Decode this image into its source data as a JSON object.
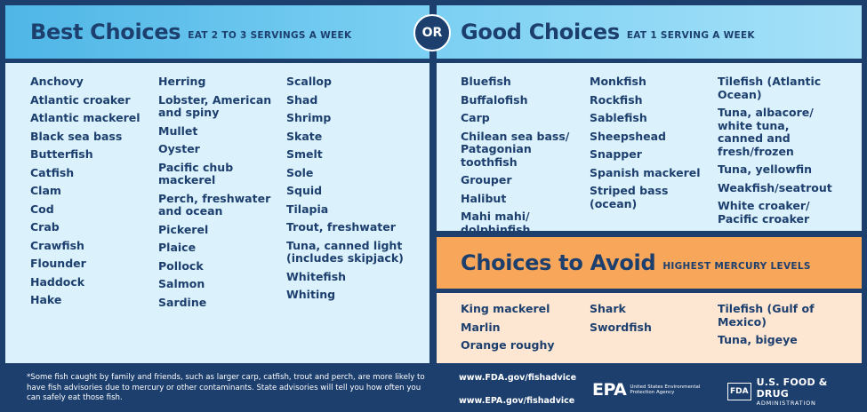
{
  "best": {
    "title": "Best Choices",
    "subtitle": "EAT 2 TO 3 SERVINGS A WEEK",
    "columns": [
      [
        "Anchovy",
        "Atlantic croaker",
        "Atlantic mackerel",
        "Black sea bass",
        "Butterfish",
        "Catfish",
        "Clam",
        "Cod",
        "Crab",
        "Crawfish",
        "Flounder",
        "Haddock",
        "Hake"
      ],
      [
        "Herring",
        "Lobster, American and spiny",
        "Mullet",
        "Oyster",
        "Pacific chub mackerel",
        "Perch, freshwater and ocean",
        "Pickerel",
        "Plaice",
        "Pollock",
        "Salmon",
        "Sardine"
      ],
      [
        "Scallop",
        "Shad",
        "Shrimp",
        "Skate",
        "Smelt",
        "Sole",
        "Squid",
        "Tilapia",
        "Trout, freshwater",
        "Tuna, canned light (includes skipjack)",
        "Whitefish",
        "Whiting"
      ]
    ]
  },
  "or_label": "OR",
  "good": {
    "title": "Good Choices",
    "subtitle": "EAT 1 SERVING A WEEK",
    "columns": [
      [
        "Bluefish",
        "Buffalofish",
        "Carp",
        "Chilean sea bass/ Patagonian toothfish",
        "Grouper",
        "Halibut",
        "Mahi mahi/ dolphinfish"
      ],
      [
        "Monkfish",
        "Rockfish",
        "Sablefish",
        "Sheepshead",
        "Snapper",
        "Spanish mackerel",
        "Striped bass (ocean)"
      ],
      [
        "Tilefish (Atlantic Ocean)",
        "Tuna, albacore/ white tuna, canned and fresh/frozen",
        "Tuna, yellowfin",
        "Weakfish/seatrout",
        "White croaker/ Pacific croaker"
      ]
    ]
  },
  "avoid": {
    "title": "Choices to Avoid",
    "subtitle": "HIGHEST MERCURY LEVELS",
    "columns": [
      [
        "King mackerel",
        "Marlin",
        "Orange roughy"
      ],
      [
        "Shark",
        "Swordfish"
      ],
      [
        "Tilefish (Gulf of Mexico)",
        "Tuna, bigeye"
      ]
    ]
  },
  "footer": {
    "footnote": "*Some fish caught by family and friends, such as larger carp, catfish, trout and perch, are more likely to have fish advisories due to mercury or other contaminants. State advisories will tell you how often you can safely eat those fish.",
    "fda_url": "www.FDA.gov/fishadvice",
    "epa_url": "www.EPA.gov/fishadvice",
    "epa_mark": "EPA",
    "epa_name": "United States Environmental Protection Agency",
    "fda_box": "FDA",
    "fda_name": "U.S. FOOD & DRUG",
    "fda_admin": "ADMINISTRATION"
  },
  "colors": {
    "navy": "#1d3f6e",
    "best_header": "#4fb6e6",
    "good_header": "#7cd0f3",
    "avoid_header": "#f8a75a",
    "list_bg": "#dbf1fc",
    "avoid_bg": "#fde7d3"
  }
}
